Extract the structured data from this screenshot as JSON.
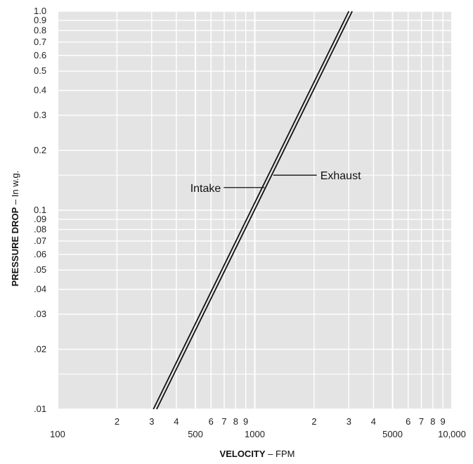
{
  "chart_data": {
    "type": "line",
    "title": "",
    "xscale": "log",
    "yscale": "log",
    "xlim": [
      100,
      10000
    ],
    "ylim": [
      0.01,
      1.0
    ],
    "grid": true,
    "xlabel": {
      "bold": "VELOCITY",
      "rest": " – FPM"
    },
    "ylabel": {
      "bold": "PRESSURE DROP",
      "rest": " – In w.g."
    },
    "x_ticks": [
      {
        "value": 100,
        "label": "100",
        "row": "major"
      },
      {
        "value": 200,
        "label": "2",
        "row": "minor"
      },
      {
        "value": 300,
        "label": "3",
        "row": "minor"
      },
      {
        "value": 400,
        "label": "4",
        "row": "minor"
      },
      {
        "value": 500,
        "label": "500",
        "row": "major"
      },
      {
        "value": 600,
        "label": "6",
        "row": "minor"
      },
      {
        "value": 700,
        "label": "7",
        "row": "minor"
      },
      {
        "value": 800,
        "label": "8",
        "row": "minor"
      },
      {
        "value": 900,
        "label": "9",
        "row": "minor"
      },
      {
        "value": 1000,
        "label": "1000",
        "row": "major"
      },
      {
        "value": 2000,
        "label": "2",
        "row": "minor"
      },
      {
        "value": 3000,
        "label": "3",
        "row": "minor"
      },
      {
        "value": 4000,
        "label": "4",
        "row": "minor"
      },
      {
        "value": 5000,
        "label": "5000",
        "row": "major"
      },
      {
        "value": 6000,
        "label": "6",
        "row": "minor"
      },
      {
        "value": 7000,
        "label": "7",
        "row": "minor"
      },
      {
        "value": 8000,
        "label": "8",
        "row": "minor"
      },
      {
        "value": 9000,
        "label": "9",
        "row": "minor"
      },
      {
        "value": 10000,
        "label": "10,000",
        "row": "major"
      }
    ],
    "y_ticks": [
      {
        "value": 1.0,
        "label": "1.0"
      },
      {
        "value": 0.9,
        "label": "0.9"
      },
      {
        "value": 0.8,
        "label": "0.8"
      },
      {
        "value": 0.7,
        "label": "0.7"
      },
      {
        "value": 0.6,
        "label": "0.6"
      },
      {
        "value": 0.5,
        "label": "0.5"
      },
      {
        "value": 0.4,
        "label": "0.4"
      },
      {
        "value": 0.3,
        "label": "0.3"
      },
      {
        "value": 0.2,
        "label": "0.2"
      },
      {
        "value": 0.1,
        "label": "0.1"
      },
      {
        "value": 0.09,
        "label": ".09"
      },
      {
        "value": 0.08,
        "label": ".08"
      },
      {
        "value": 0.07,
        "label": ".07"
      },
      {
        "value": 0.06,
        "label": ".06"
      },
      {
        "value": 0.05,
        "label": ".05"
      },
      {
        "value": 0.04,
        "label": ".04"
      },
      {
        "value": 0.03,
        "label": ".03"
      },
      {
        "value": 0.02,
        "label": ".02"
      },
      {
        "value": 0.01,
        "label": ".01"
      }
    ],
    "series": [
      {
        "name": "Intake",
        "x": [
          306,
          3000
        ],
        "y": [
          0.01,
          1.0
        ]
      },
      {
        "name": "Exhaust",
        "x": [
          318,
          3120
        ],
        "y": [
          0.01,
          1.0
        ]
      }
    ],
    "annotations": [
      {
        "text": "Intake",
        "x": 1120,
        "y": 0.13,
        "anchor": "end"
      },
      {
        "text": "Exhaust",
        "x": 1240,
        "y": 0.15,
        "anchor": "start"
      }
    ],
    "colors": {
      "plot_bg": "#e4e4e4",
      "grid": "#ffffff",
      "line": "#111111"
    }
  }
}
